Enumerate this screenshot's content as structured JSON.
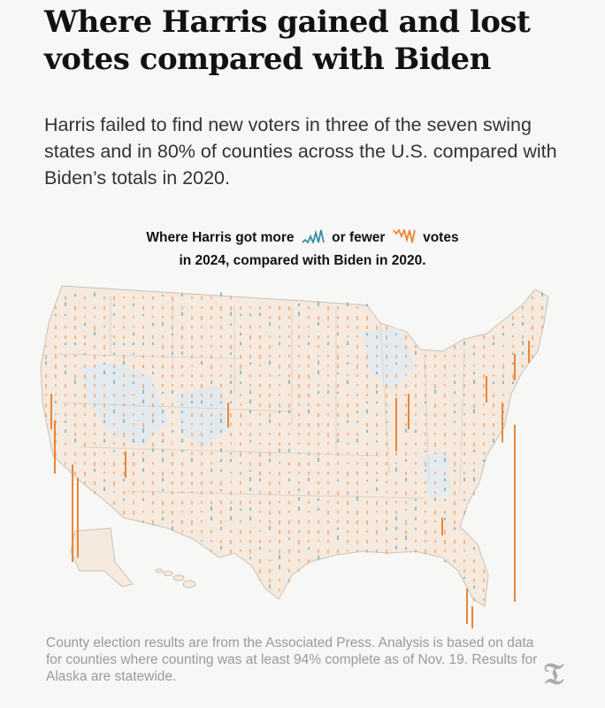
{
  "headline": "Where Harris gained and lost votes compared with Biden",
  "dek": "Harris failed to find new voters in three of the seven swing states and in 80% of counties across the U.S. compared with Biden’s totals in 2020.",
  "legend": {
    "part1": "Where Harris got more",
    "part2": "or fewer",
    "part3": "votes",
    "line2": "in 2024, compared with Biden in 2020."
  },
  "colors": {
    "gain": "#3a8fa3",
    "loss": "#e8873a",
    "land": "#f6e9de",
    "land_gain": "#e6ecf0",
    "border": "#c9c2bb"
  },
  "footnote": "County election results are from the Associated Press. Analysis is based on data for counties where counting was at least 94% complete as of Nov. 19. Results for Alaska are statewide.",
  "logo_icon": "nyt-t-logo-icon"
}
